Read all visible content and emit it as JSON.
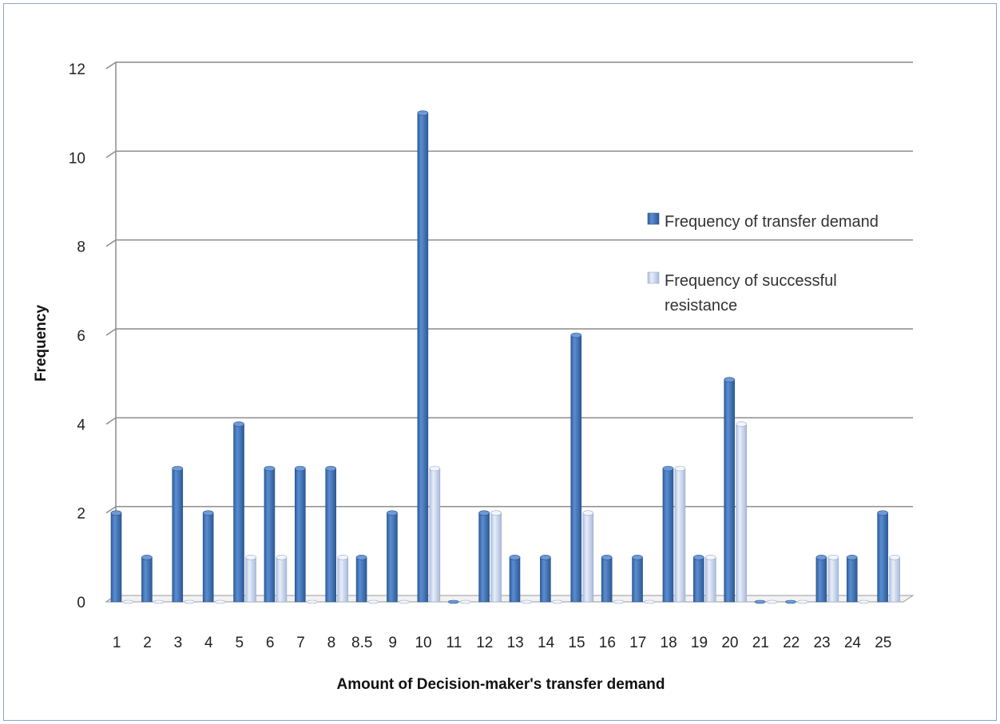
{
  "chart_data": {
    "type": "bar",
    "xlabel": "Amount of Decision-maker's transfer demand",
    "ylabel": "Frequency",
    "ylim": [
      0,
      12
    ],
    "yticks": [
      0,
      2,
      4,
      6,
      8,
      10,
      12
    ],
    "grid": true,
    "legend_position": "right",
    "categories": [
      "1",
      "2",
      "3",
      "4",
      "5",
      "6",
      "7",
      "8",
      "8.5",
      "9",
      "10",
      "11",
      "12",
      "13",
      "14",
      "15",
      "16",
      "17",
      "18",
      "19",
      "20",
      "21",
      "22",
      "23",
      "24",
      "25"
    ],
    "series": [
      {
        "name": "Frequency of transfer demand",
        "legend_lines": [
          "Frequency of transfer demand"
        ],
        "color": "#4a7cc0",
        "values": [
          2,
          1,
          3,
          2,
          4,
          3,
          3,
          3,
          1,
          2,
          11,
          0,
          2,
          1,
          1,
          6,
          1,
          1,
          3,
          1,
          5,
          0,
          0,
          1,
          1,
          2
        ]
      },
      {
        "name": "Frequency of successful resistance",
        "legend_lines": [
          "Frequency of successful",
          "resistance"
        ],
        "color": "#c9d7ee",
        "values": [
          0,
          0,
          0,
          0,
          1,
          1,
          0,
          1,
          0,
          0,
          3,
          0,
          2,
          0,
          0,
          2,
          0,
          0,
          3,
          1,
          4,
          0,
          0,
          1,
          0,
          1
        ]
      }
    ]
  }
}
